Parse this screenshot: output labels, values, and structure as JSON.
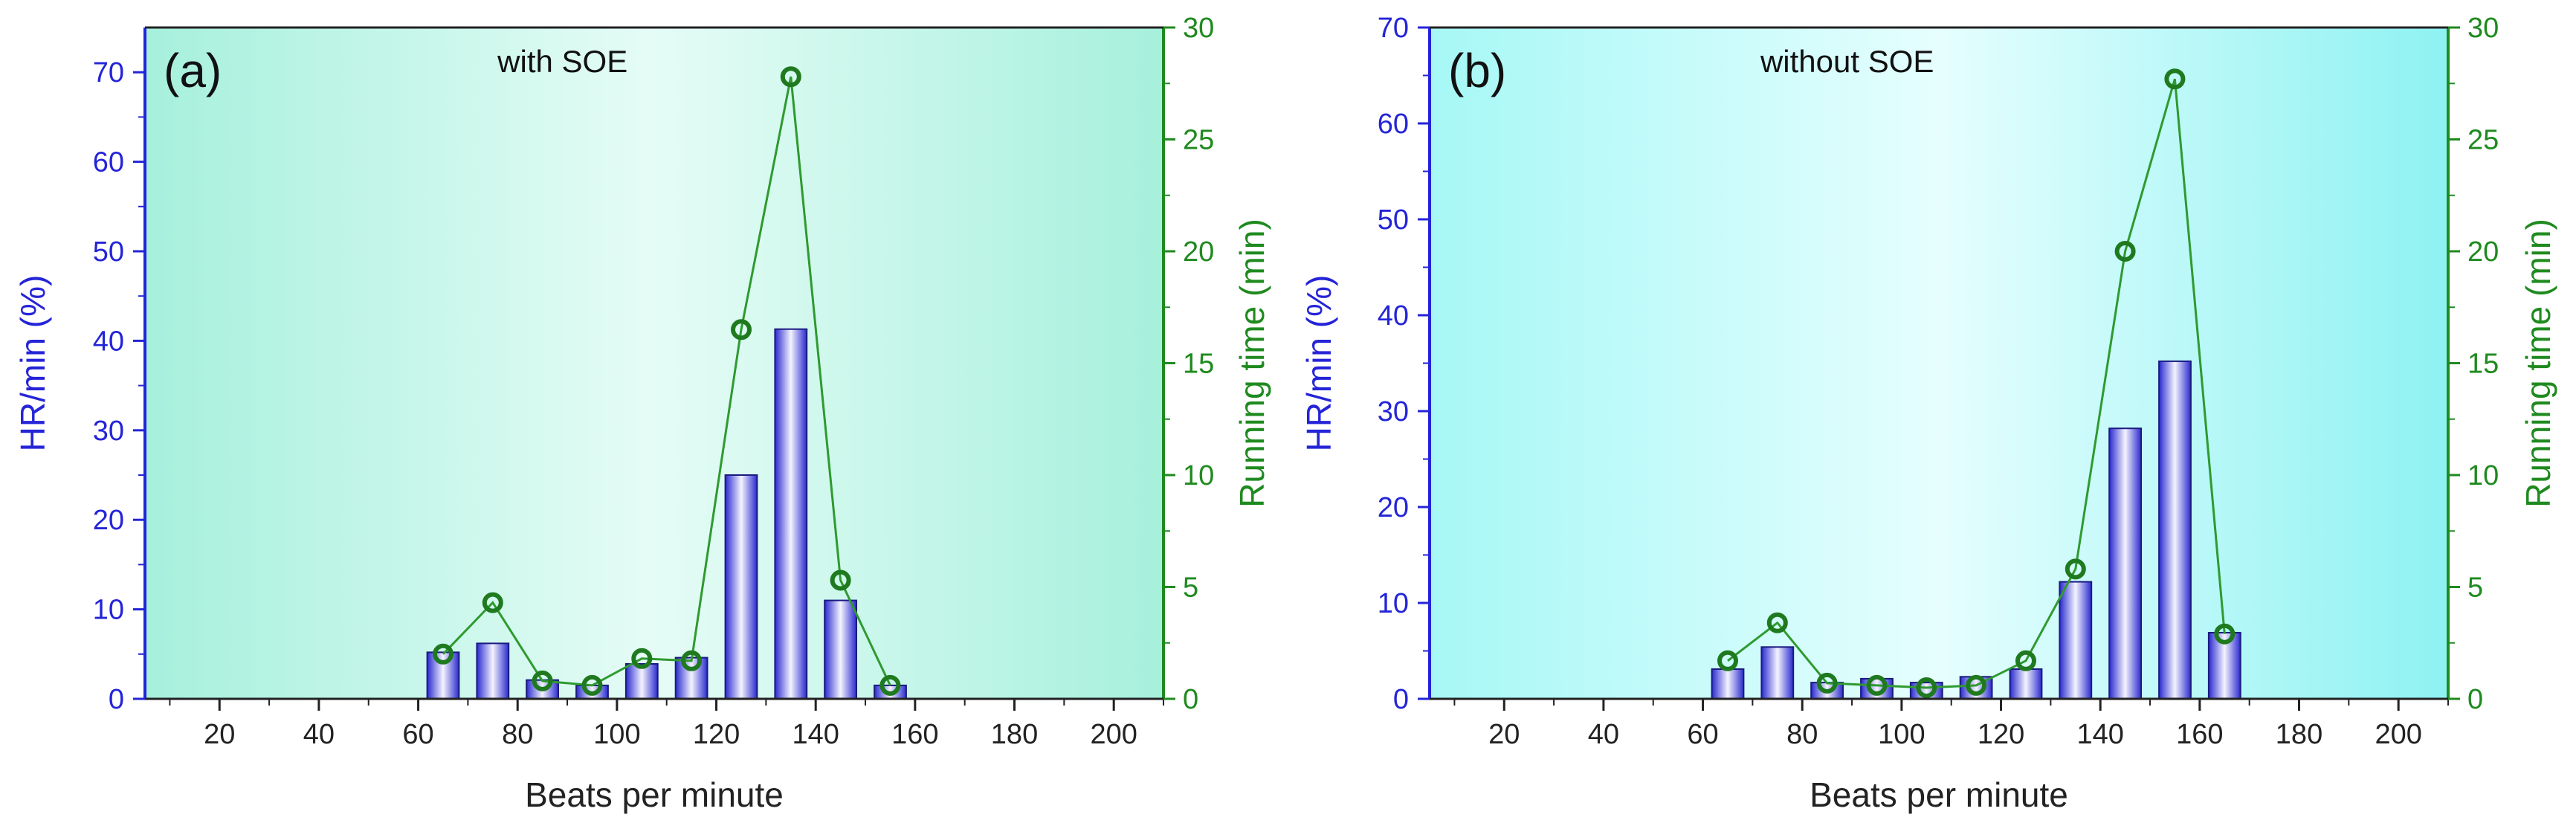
{
  "chart_data": [
    {
      "type": "bar",
      "panel_label": "(a)",
      "title": "with SOE",
      "xlabel": "Beats per minute",
      "ylabel": "HR/min (%)",
      "y2label": "Running time (min)",
      "xlim": [
        5,
        210
      ],
      "ylim": [
        0,
        75
      ],
      "y2lim": [
        0,
        30
      ],
      "xticks": [
        20,
        40,
        60,
        80,
        100,
        120,
        140,
        160,
        180,
        200
      ],
      "yticks": [
        0,
        10,
        20,
        30,
        40,
        50,
        60,
        70
      ],
      "y2ticks": [
        0,
        5,
        10,
        15,
        20,
        25,
        30
      ],
      "x": [
        65,
        75,
        85,
        95,
        105,
        115,
        125,
        135,
        145,
        155
      ],
      "bars": [
        5.2,
        6.2,
        2.1,
        1.5,
        3.9,
        4.6,
        25.0,
        41.3,
        11.0,
        1.5
      ],
      "line": [
        2.0,
        4.3,
        0.8,
        0.6,
        1.8,
        1.7,
        16.5,
        27.8,
        5.3,
        0.6
      ],
      "background_colors": [
        "#a6f0dc",
        "#e5fcf6",
        "#a6f0dc"
      ]
    },
    {
      "type": "bar",
      "panel_label": "(b)",
      "title": "without SOE",
      "xlabel": "Beats per minute",
      "ylabel": "HR/min (%)",
      "y2label": "Running time (min)",
      "xlim": [
        5,
        210
      ],
      "ylim": [
        0,
        70
      ],
      "y2lim": [
        0,
        30
      ],
      "xticks": [
        20,
        40,
        60,
        80,
        100,
        120,
        140,
        160,
        180,
        200
      ],
      "yticks": [
        0,
        10,
        20,
        30,
        40,
        50,
        60,
        70
      ],
      "y2ticks": [
        0,
        5,
        10,
        15,
        20,
        25,
        30
      ],
      "x": [
        65,
        75,
        85,
        95,
        105,
        115,
        125,
        135,
        145,
        155,
        165
      ],
      "bars": [
        3.1,
        5.4,
        1.7,
        2.1,
        1.7,
        2.3,
        3.1,
        12.2,
        28.2,
        35.2,
        6.9
      ],
      "line": [
        1.7,
        3.4,
        0.7,
        0.6,
        0.5,
        0.6,
        1.7,
        5.8,
        20.0,
        27.7,
        2.9
      ],
      "background_colors": [
        "#a6f8f6",
        "#e6fefe",
        "#8ef2f2"
      ]
    }
  ],
  "colors": {
    "left_axis": "#2424d8",
    "right_axis": "#1f8a1f",
    "bar_dark": "#2a2ad0",
    "bar_light": "#f4f4ff",
    "line": "#2f9a2f",
    "marker": "#1f7a1f"
  }
}
